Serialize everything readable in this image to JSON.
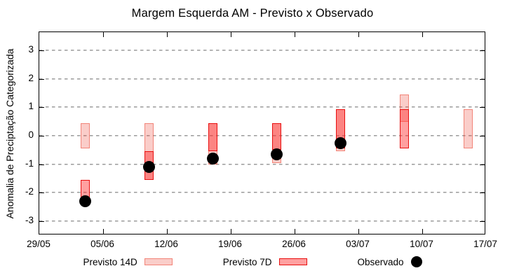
{
  "chart_data": {
    "type": "range-bar+scatter",
    "title": "Margem Esquerda AM - Previsto x Observado",
    "ylabel": "Anomalia de Preciptação Categorizada",
    "xlabel": "",
    "x_ticks": [
      "29/05",
      "05/06",
      "12/06",
      "19/06",
      "26/06",
      "03/07",
      "10/07",
      "17/07"
    ],
    "x_axis_span_days": 49,
    "x_tick_interval_days": 7,
    "y_ticks": [
      3,
      2,
      1,
      0,
      -1,
      -2,
      -3
    ],
    "ylim": [
      -3.5,
      3.65
    ],
    "grid": "horizontal-dashed",
    "legend_position": "bottom",
    "colors": {
      "previsto14d_fill": "#FACCC8",
      "previsto14d_border": "#F49C91",
      "previsto7d_fill": "#FFA0A0",
      "previsto7d_border": "#E81010",
      "overlap_fill": "#FB8582",
      "observado": "#000000",
      "grid": "#9B9B9B"
    },
    "legend": [
      {
        "label": "Previsto 14D",
        "swatch": "pink-range-bar"
      },
      {
        "label": "Previsto 7D",
        "swatch": "red-range-bar"
      },
      {
        "label": "Observado",
        "swatch": "black-dot"
      }
    ],
    "series": [
      {
        "name": "Previsto 14D",
        "type": "range_bar",
        "points": [
          {
            "date": "03/06",
            "day_offset": 5,
            "low": -0.45,
            "high": 0.45
          },
          {
            "date": "10/06",
            "day_offset": 12,
            "low": -1.55,
            "high": 0.45
          },
          {
            "date": "17/06",
            "day_offset": 19,
            "low": -1.0,
            "high": 0.45
          },
          {
            "date": "24/06",
            "day_offset": 26,
            "low": -0.95,
            "high": 0.45
          },
          {
            "date": "01/07",
            "day_offset": 33,
            "low": -0.55,
            "high": 0.95
          },
          {
            "date": "08/07",
            "day_offset": 40,
            "low": 0.5,
            "high": 1.45
          },
          {
            "date": "15/07",
            "day_offset": 47,
            "low": -0.45,
            "high": 0.95
          }
        ]
      },
      {
        "name": "Previsto 7D",
        "type": "range_bar",
        "points": [
          {
            "date": "03/06",
            "day_offset": 5,
            "low": -2.25,
            "high": -1.55
          },
          {
            "date": "10/06",
            "day_offset": 12,
            "low": -1.55,
            "high": -0.55
          },
          {
            "date": "17/06",
            "day_offset": 19,
            "low": -0.55,
            "high": 0.45
          },
          {
            "date": "24/06",
            "day_offset": 26,
            "low": -0.5,
            "high": 0.45
          },
          {
            "date": "01/07",
            "day_offset": 33,
            "low": -0.45,
            "high": 0.95
          },
          {
            "date": "08/07",
            "day_offset": 40,
            "low": -0.45,
            "high": 0.95
          }
        ]
      },
      {
        "name": "Observado",
        "type": "scatter",
        "points": [
          {
            "date": "03/06",
            "day_offset": 5,
            "value": -2.3
          },
          {
            "date": "10/06",
            "day_offset": 12,
            "value": -1.1
          },
          {
            "date": "17/06",
            "day_offset": 19,
            "value": -0.8
          },
          {
            "date": "24/06",
            "day_offset": 26,
            "value": -0.65
          },
          {
            "date": "01/07",
            "day_offset": 33,
            "value": -0.25
          }
        ]
      }
    ]
  }
}
